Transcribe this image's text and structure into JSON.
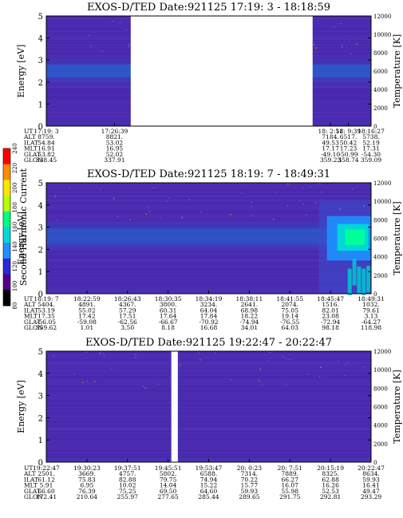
{
  "colors": {
    "background": "#ffffff",
    "plasma_base": "#4b2bb0",
    "plasma_bright": "#1f6dd6",
    "frame": "#000000"
  },
  "colorbar": {
    "label": "Second Harmonic Current",
    "ticks": [
      "80",
      "100",
      "120",
      "140",
      "160",
      "180",
      "200",
      "220",
      "240"
    ],
    "colors": [
      "#000000",
      "#55008c",
      "#2a2ad8",
      "#1e90ff",
      "#00d7d7",
      "#00ff7f",
      "#b4ff00",
      "#ffe600",
      "#ff8c00",
      "#ff0000"
    ]
  },
  "chart_data": [
    {
      "type": "heatmap",
      "title": "EXOS-D/TED   Date:921125  17:19: 3 - 18:18:59",
      "ylabel": "Energy [eV]",
      "y2label": "Temperature [K]",
      "ylim": [
        0,
        5
      ],
      "y2lim": [
        0,
        12000
      ],
      "yticks": [
        "0",
        "1",
        "2",
        "3",
        "4",
        "5"
      ],
      "y2ticks": [
        "0",
        "2000",
        "4000",
        "6000",
        "8000",
        "10000",
        "12000"
      ],
      "data_gap": [
        0.26,
        0.82
      ],
      "band": {
        "center_ev": 2.5,
        "width_ev": 0.6,
        "intensity": 0.55
      },
      "orbit_labels": [
        "UT",
        "ALT",
        "ILAT",
        "MLT",
        "GLAT",
        "GLON"
      ],
      "orbit_columns": [
        {
          "ut": "17:19: 3",
          "alt": "8759.",
          "ilat": "54.84",
          "mlt": "16.91",
          "glat": "53.82",
          "glon": "338.45"
        },
        {
          "ut": "17:26:39",
          "alt": "8821.",
          "ilat": "53.02",
          "mlt": "16.95",
          "glat": "52.02",
          "glon": "337.91"
        },
        {
          "ut": "18: 2:51",
          "alt": "7184.",
          "ilat": "49.53",
          "mlt": "17.17",
          "glat": "-49.10",
          "glon": "359.23"
        },
        {
          "ut": "18: 9:39",
          "alt": "6517.",
          "ilat": "50.42",
          "mlt": "17.23",
          "glat": "-50.99",
          "glon": "358.74"
        },
        {
          "ut": "18:16:27",
          "alt": "5738.",
          "ilat": "52.19",
          "mlt": "17.31",
          "glat": "-54.30",
          "glon": "359.09"
        }
      ]
    },
    {
      "type": "heatmap",
      "title": "EXOS-D/TED   Date:921125  18:19: 7 - 18:49:31",
      "ylabel": "Energy [eV]",
      "y2label": "Temperature [K]",
      "ylim": [
        0,
        5
      ],
      "y2lim": [
        0,
        12000
      ],
      "yticks": [
        "0",
        "1",
        "2",
        "3",
        "4",
        "5"
      ],
      "y2ticks": [
        "0",
        "2000",
        "4000",
        "6000",
        "8000",
        "10000",
        "12000"
      ],
      "band": {
        "center_ev": 2.6,
        "width_ev": 0.7,
        "intensity": 0.5
      },
      "hot_region": {
        "start": 0.84,
        "energy_center": 2.5,
        "energy_width": 1.0
      },
      "orbit_labels": [
        "UT",
        "ALT",
        "ILAT",
        "MLT",
        "GLAT",
        "GLON"
      ],
      "orbit_columns": [
        {
          "ut": "18:19: 7",
          "alt": "5404.",
          "ilat": "53.19",
          "mlt": "17.35",
          "glat": "-56.05",
          "glon": "359.62"
        },
        {
          "ut": "18:22:59",
          "alt": "4891.",
          "ilat": "55.02",
          "mlt": "17.42",
          "glat": "-59.08",
          "glon": "1.01"
        },
        {
          "ut": "18:26:43",
          "alt": "4367.",
          "ilat": "57.29",
          "mlt": "17.51",
          "glat": "-62.56",
          "glon": "3.50"
        },
        {
          "ut": "18:30:35",
          "alt": "3800.",
          "ilat": "60.31",
          "mlt": "17.64",
          "glat": "-66.67",
          "glon": "8.18"
        },
        {
          "ut": "18:34:19",
          "alt": "3234.",
          "ilat": "64.04",
          "mlt": "17.84",
          "glat": "-70.92",
          "glon": "16.68"
        },
        {
          "ut": "18:38:11",
          "alt": "2641.",
          "ilat": "68.98",
          "mlt": "18.22",
          "glat": "-74.94",
          "glon": "34.01"
        },
        {
          "ut": "18:41:55",
          "alt": "2074.",
          "ilat": "75.05",
          "mlt": "19.14",
          "glat": "-76.55",
          "glon": "64.03"
        },
        {
          "ut": "18:45:47",
          "alt": "1516.",
          "ilat": "82.01",
          "mlt": "23.08",
          "glat": "-72.94",
          "glon": "98.18"
        },
        {
          "ut": "18:49:31",
          "alt": "1032.",
          "ilat": "79.61",
          "mlt": "3.13",
          "glat": "-64.27",
          "glon": "118.98"
        }
      ]
    },
    {
      "type": "heatmap",
      "title": "EXOS-D/TED   Date:921125  19:22:47 - 20:22:47",
      "ylabel": "Energy [eV]",
      "y2label": "Temperature [K]",
      "ylim": [
        0,
        5
      ],
      "y2lim": [
        0,
        12000
      ],
      "yticks": [
        "0",
        "1",
        "2",
        "3",
        "4",
        "5"
      ],
      "y2ticks": [
        "0",
        "2000",
        "4000",
        "6000",
        "8000",
        "10000",
        "12000"
      ],
      "data_gap": [
        0.385,
        0.405
      ],
      "band": {
        "center_ev": 2.5,
        "width_ev": 0.5,
        "intensity": 0.0
      },
      "orbit_labels": [
        "UT",
        "ALT",
        "ILAT",
        "MLT",
        "GLAT",
        "GLON"
      ],
      "orbit_columns": [
        {
          "ut": "19:22:47",
          "alt": "2501.",
          "ilat": "61.12",
          "mlt": "5.91",
          "glat": "66.60",
          "glon": "172.41"
        },
        {
          "ut": "19:30:23",
          "alt": "3669.",
          "ilat": "75.83",
          "mlt": "6.95",
          "glat": "76.39",
          "glon": "210.64"
        },
        {
          "ut": "19:37:51",
          "alt": "4757.",
          "ilat": "82.88",
          "mlt": "10.02",
          "glat": "75.25",
          "glon": "255.97"
        },
        {
          "ut": "19:45:51",
          "alt": "5802.",
          "ilat": "79.75",
          "mlt": "14.04",
          "glat": "69.50",
          "glon": "277.65"
        },
        {
          "ut": "19:53:47",
          "alt": "6588.",
          "ilat": "74.94",
          "mlt": "15.22",
          "glat": "64.60",
          "glon": "285.44"
        },
        {
          "ut": "20: 0:23",
          "alt": "7314.",
          "ilat": "70.22",
          "mlt": "15.77",
          "glat": "59.93",
          "glon": "289.65"
        },
        {
          "ut": "20: 7:51",
          "alt": "7889.",
          "ilat": "66.27",
          "mlt": "16.07",
          "glat": "55.98",
          "glon": "291.75"
        },
        {
          "ut": "20:15:19",
          "alt": "8325.",
          "ilat": "62.88",
          "mlt": "16.26",
          "glat": "52.53",
          "glon": "292.81"
        },
        {
          "ut": "20:22:47",
          "alt": "8634.",
          "ilat": "59.93",
          "mlt": "16.41",
          "glat": "49.47",
          "glon": "293.29"
        }
      ]
    }
  ]
}
